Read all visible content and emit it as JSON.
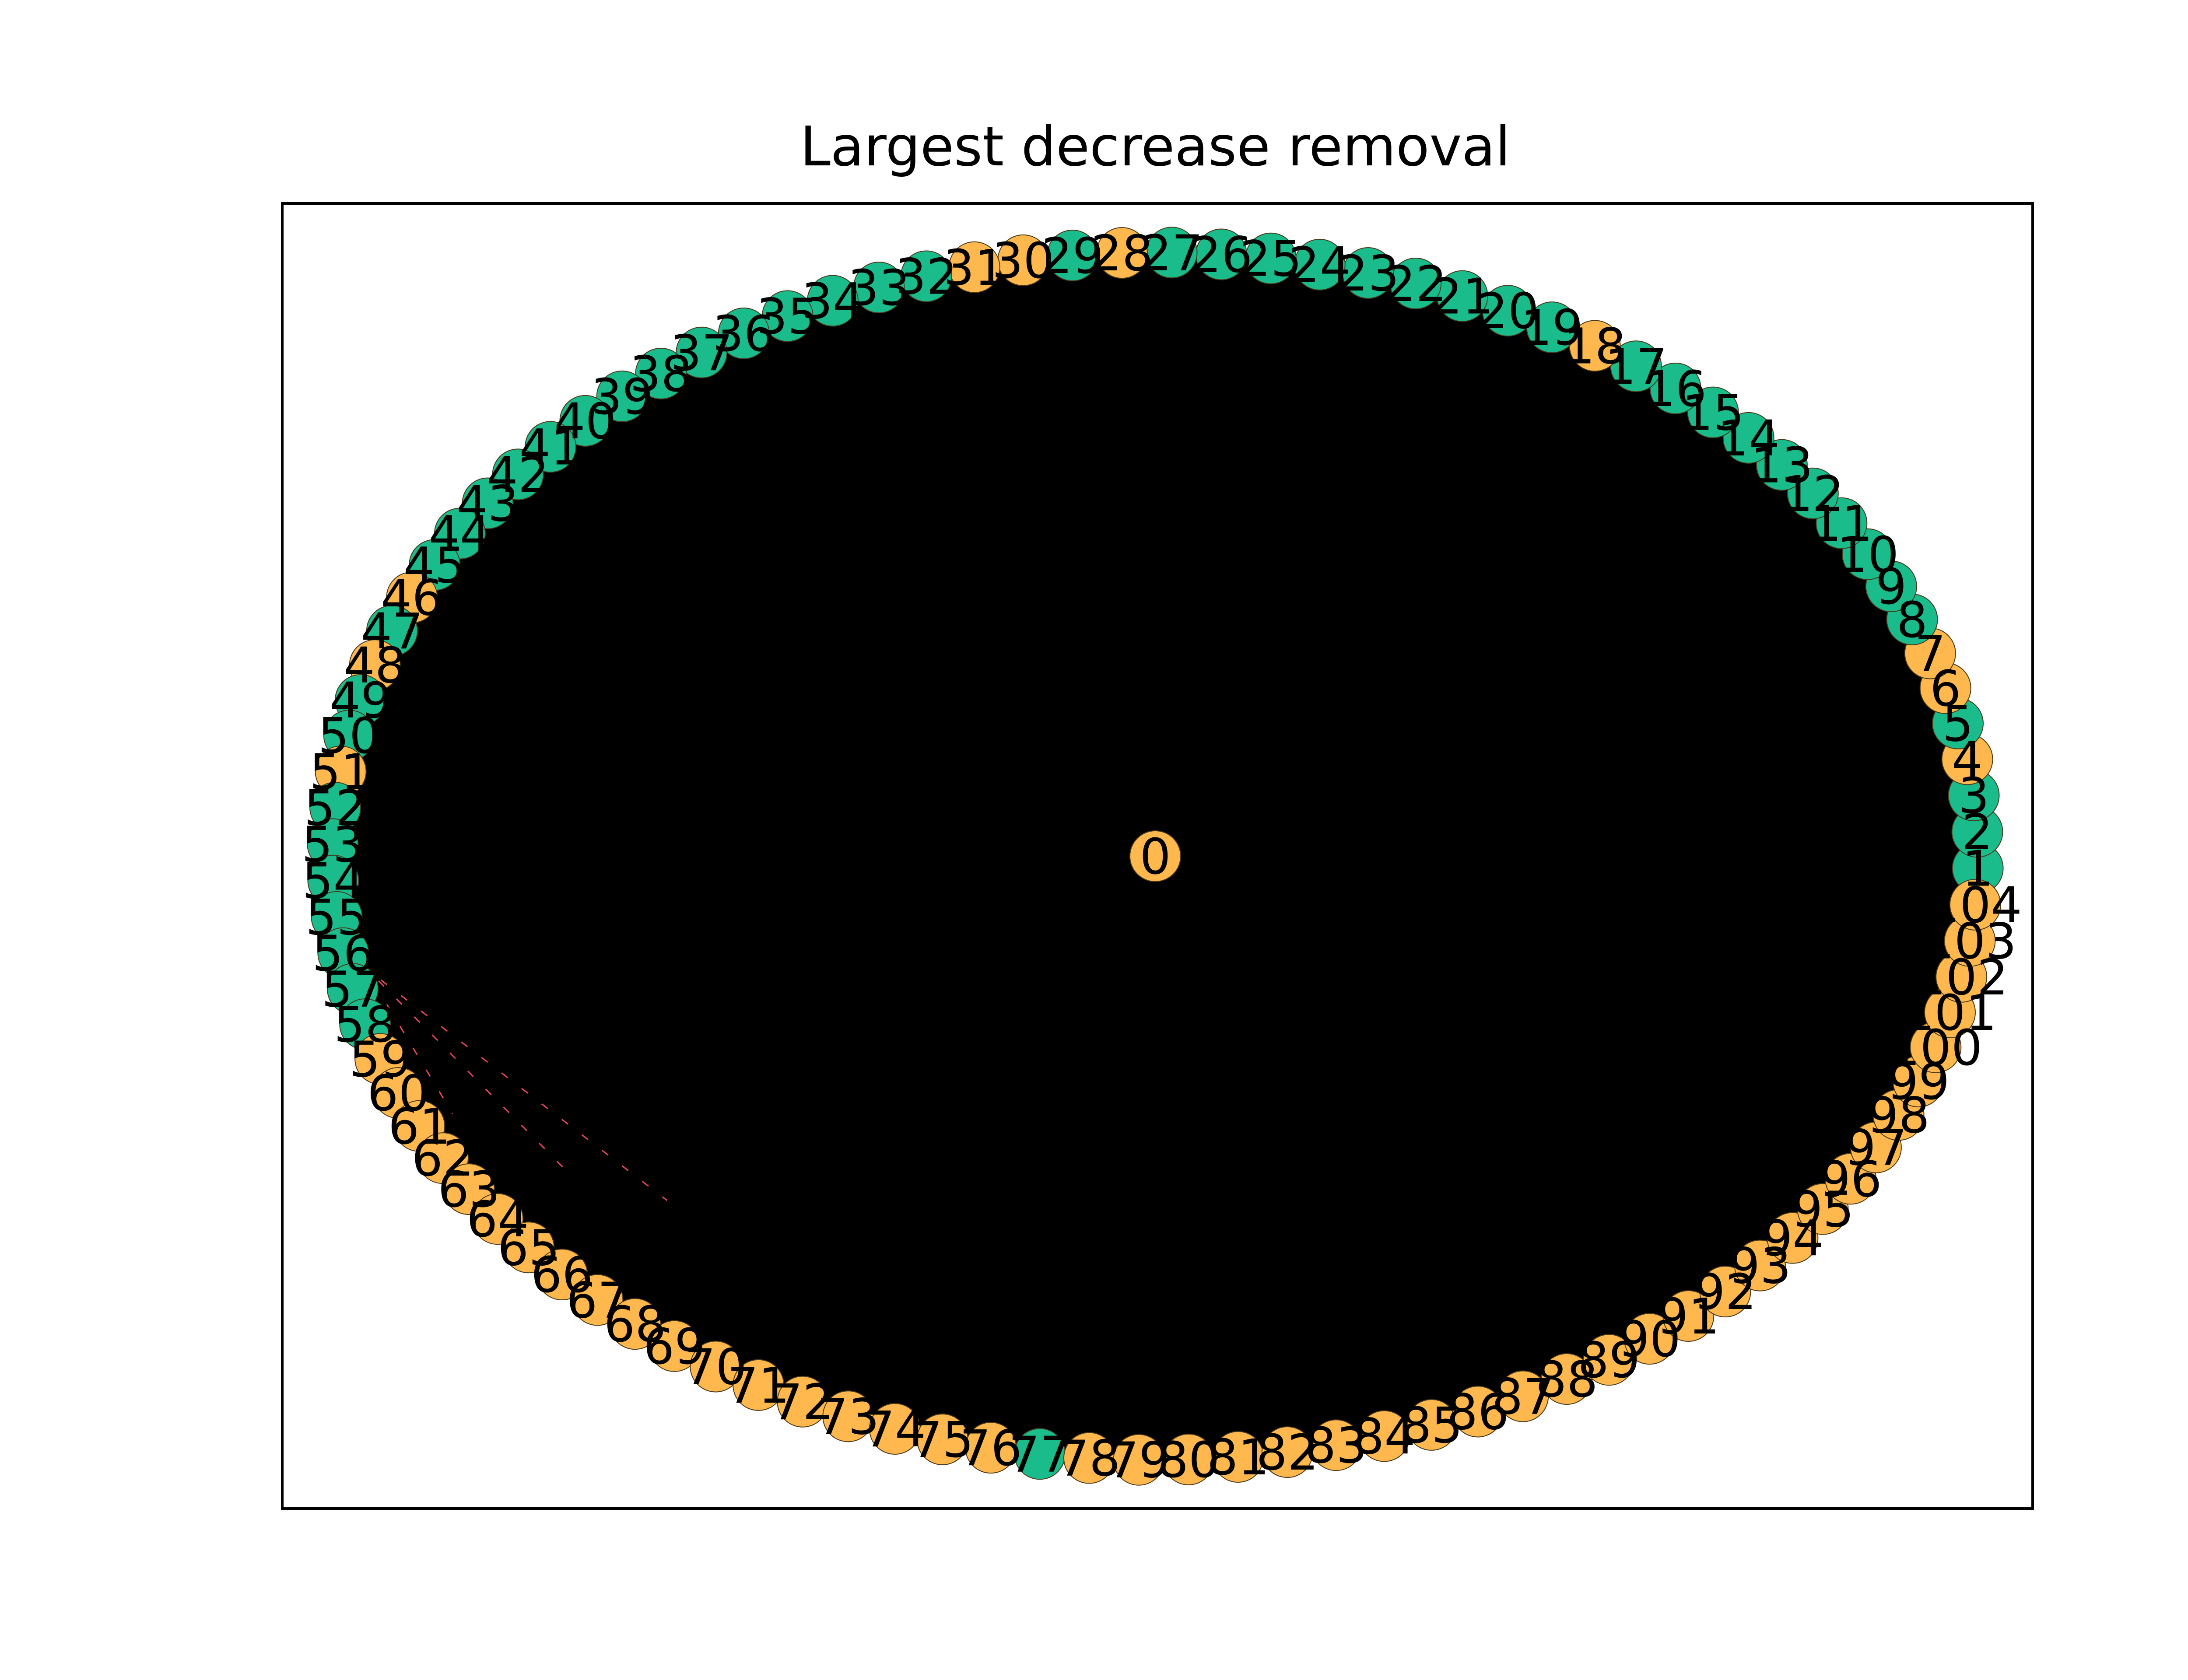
{
  "title": "Largest decrease removal",
  "colors": {
    "green": "#1abc8c",
    "orange": "#ffb84d",
    "edge": "#000000",
    "highlight_edge": "#e8495b",
    "node_border": "#4a3a1a",
    "frame": "#000000",
    "background": "#ffffff"
  },
  "graph": {
    "layout": "circular",
    "node_count": 105,
    "center_node": "0",
    "ring_label_order": "counter-clockwise from the right, starting at 1",
    "nodes": [
      {
        "id": "0",
        "color": "orange"
      },
      {
        "id": "1",
        "color": "green"
      },
      {
        "id": "2",
        "color": "green"
      },
      {
        "id": "3",
        "color": "green"
      },
      {
        "id": "4",
        "color": "orange"
      },
      {
        "id": "5",
        "color": "green"
      },
      {
        "id": "6",
        "color": "orange"
      },
      {
        "id": "7",
        "color": "orange"
      },
      {
        "id": "8",
        "color": "green"
      },
      {
        "id": "9",
        "color": "green"
      },
      {
        "id": "10",
        "color": "green"
      },
      {
        "id": "11",
        "color": "green"
      },
      {
        "id": "12",
        "color": "green"
      },
      {
        "id": "13",
        "color": "green"
      },
      {
        "id": "14",
        "color": "green"
      },
      {
        "id": "15",
        "color": "green"
      },
      {
        "id": "16",
        "color": "green"
      },
      {
        "id": "17",
        "color": "green"
      },
      {
        "id": "18",
        "color": "orange"
      },
      {
        "id": "19",
        "color": "green"
      },
      {
        "id": "20",
        "color": "green"
      },
      {
        "id": "21",
        "color": "green"
      },
      {
        "id": "22",
        "color": "green"
      },
      {
        "id": "23",
        "color": "green"
      },
      {
        "id": "24",
        "color": "green"
      },
      {
        "id": "25",
        "color": "green"
      },
      {
        "id": "26",
        "color": "green"
      },
      {
        "id": "27",
        "color": "green"
      },
      {
        "id": "28",
        "color": "orange"
      },
      {
        "id": "29",
        "color": "green"
      },
      {
        "id": "30",
        "color": "orange"
      },
      {
        "id": "31",
        "color": "orange"
      },
      {
        "id": "32",
        "color": "green"
      },
      {
        "id": "33",
        "color": "green"
      },
      {
        "id": "34",
        "color": "green"
      },
      {
        "id": "35",
        "color": "green"
      },
      {
        "id": "36",
        "color": "green"
      },
      {
        "id": "37",
        "color": "green"
      },
      {
        "id": "38",
        "color": "green"
      },
      {
        "id": "39",
        "color": "green"
      },
      {
        "id": "40",
        "color": "green"
      },
      {
        "id": "41",
        "color": "green"
      },
      {
        "id": "42",
        "color": "green"
      },
      {
        "id": "43",
        "color": "green"
      },
      {
        "id": "44",
        "color": "green"
      },
      {
        "id": "45",
        "color": "green"
      },
      {
        "id": "46",
        "color": "orange"
      },
      {
        "id": "47",
        "color": "green"
      },
      {
        "id": "48",
        "color": "orange"
      },
      {
        "id": "49",
        "color": "green"
      },
      {
        "id": "50",
        "color": "green"
      },
      {
        "id": "51",
        "color": "orange"
      },
      {
        "id": "52",
        "color": "green"
      },
      {
        "id": "53",
        "color": "green"
      },
      {
        "id": "54",
        "color": "green"
      },
      {
        "id": "55",
        "color": "green"
      },
      {
        "id": "56",
        "color": "green"
      },
      {
        "id": "57",
        "color": "green"
      },
      {
        "id": "58",
        "color": "green"
      },
      {
        "id": "59",
        "color": "orange"
      },
      {
        "id": "60",
        "color": "orange"
      },
      {
        "id": "61",
        "color": "orange"
      },
      {
        "id": "62",
        "color": "orange"
      },
      {
        "id": "63",
        "color": "orange"
      },
      {
        "id": "64",
        "color": "orange"
      },
      {
        "id": "65",
        "color": "orange"
      },
      {
        "id": "66",
        "color": "orange"
      },
      {
        "id": "67",
        "color": "orange"
      },
      {
        "id": "68",
        "color": "orange"
      },
      {
        "id": "69",
        "color": "orange"
      },
      {
        "id": "70",
        "color": "orange"
      },
      {
        "id": "71",
        "color": "orange"
      },
      {
        "id": "72",
        "color": "orange"
      },
      {
        "id": "73",
        "color": "orange"
      },
      {
        "id": "74",
        "color": "orange"
      },
      {
        "id": "75",
        "color": "orange"
      },
      {
        "id": "76",
        "color": "orange"
      },
      {
        "id": "77",
        "color": "green"
      },
      {
        "id": "78",
        "color": "orange"
      },
      {
        "id": "79",
        "color": "orange"
      },
      {
        "id": "80",
        "color": "orange"
      },
      {
        "id": "81",
        "color": "orange"
      },
      {
        "id": "82",
        "color": "orange"
      },
      {
        "id": "83",
        "color": "orange"
      },
      {
        "id": "84",
        "color": "orange"
      },
      {
        "id": "85",
        "color": "orange"
      },
      {
        "id": "86",
        "color": "orange"
      },
      {
        "id": "87",
        "color": "orange"
      },
      {
        "id": "88",
        "color": "orange"
      },
      {
        "id": "89",
        "color": "orange"
      },
      {
        "id": "90",
        "color": "orange"
      },
      {
        "id": "91",
        "color": "orange"
      },
      {
        "id": "92",
        "color": "orange"
      },
      {
        "id": "93",
        "color": "orange"
      },
      {
        "id": "94",
        "color": "orange"
      },
      {
        "id": "95",
        "color": "orange"
      },
      {
        "id": "96",
        "color": "orange"
      },
      {
        "id": "97",
        "color": "orange"
      },
      {
        "id": "98",
        "color": "orange"
      },
      {
        "id": "99",
        "color": "orange"
      },
      {
        "id": "100",
        "color": "orange"
      },
      {
        "id": "101",
        "color": "orange"
      },
      {
        "id": "102",
        "color": "orange"
      },
      {
        "id": "103",
        "color": "orange"
      },
      {
        "id": "104",
        "color": "orange"
      }
    ]
  }
}
